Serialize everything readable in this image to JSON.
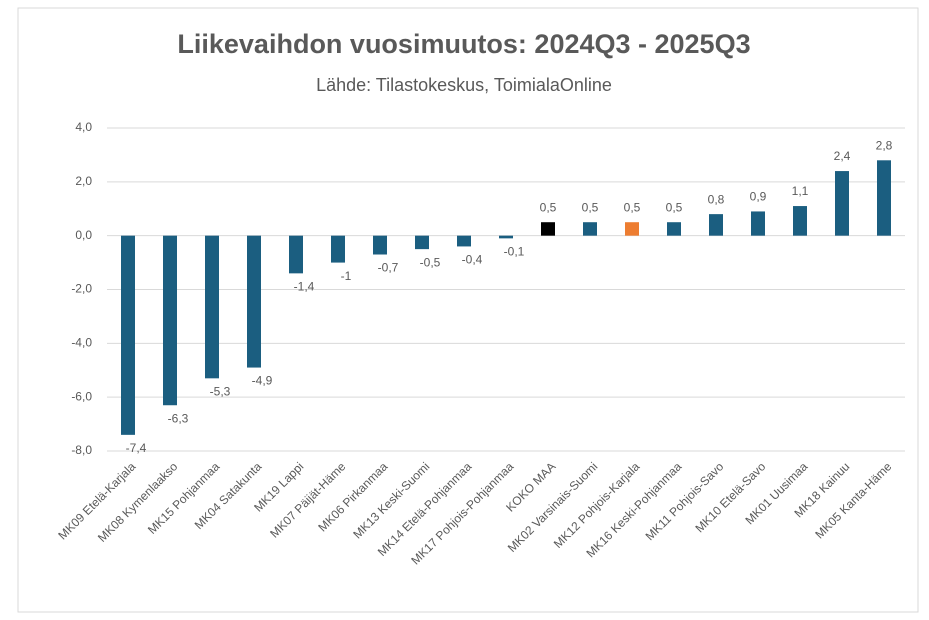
{
  "chart_data": {
    "type": "bar",
    "title": "Liikevaihdon vuosimuutos: 2024Q3 - 2025Q3",
    "subtitle": "Lähde: Tilastokeskus, ToimialaOnline",
    "categories": [
      "MK09 Etelä-Karjala",
      "MK08 Kymenlaakso",
      "MK15 Pohjanmaa",
      "MK04 Satakunta",
      "MK19 Lappi",
      "MK07 Päijät-Häme",
      "MK06 Pirkanmaa",
      "MK13 Keski-Suomi",
      "MK14 Etelä-Pohjanmaa",
      "MK17 Pohjois-Pohjanmaa",
      "KOKO MAA",
      "MK02 Varsinais-Suomi",
      "MK12 Pohjois-Karjala",
      "MK16 Keski-Pohjanmaa",
      "MK11 Pohjois-Savo",
      "MK10 Etelä-Savo",
      "MK01 Uusimaa",
      "MK18 Kainuu",
      "MK05 Kanta-Häme"
    ],
    "values": [
      -7.4,
      -6.3,
      -5.3,
      -4.9,
      -1.4,
      -1,
      -0.7,
      -0.5,
      -0.4,
      -0.1,
      0.5,
      0.5,
      0.5,
      0.5,
      0.8,
      0.9,
      1.1,
      2.4,
      2.8
    ],
    "value_labels": [
      "-7,4",
      "-6,3",
      "-5,3",
      "-4,9",
      "-1,4",
      "-1",
      "-0,7",
      "-0,5",
      "-0,4",
      "-0,1",
      "0,5",
      "0,5",
      "0,5",
      "0,5",
      "0,8",
      "0,9",
      "1,1",
      "2,4",
      "2,8"
    ],
    "colors": [
      "#1b5e80",
      "#1b5e80",
      "#1b5e80",
      "#1b5e80",
      "#1b5e80",
      "#1b5e80",
      "#1b5e80",
      "#1b5e80",
      "#1b5e80",
      "#1b5e80",
      "#000000",
      "#1b5e80",
      "#ed7d31",
      "#1b5e80",
      "#1b5e80",
      "#1b5e80",
      "#1b5e80",
      "#1b5e80",
      "#1b5e80"
    ],
    "ylim": [
      -8,
      4
    ],
    "yticks": [
      {
        "value": -8,
        "label": "-8,0"
      },
      {
        "value": -6,
        "label": "-6,0"
      },
      {
        "value": -4,
        "label": "-4,0"
      },
      {
        "value": -2,
        "label": "-2,0"
      },
      {
        "value": 0,
        "label": "0,0"
      },
      {
        "value": 2,
        "label": "2,0"
      },
      {
        "value": 4,
        "label": "4,0"
      }
    ],
    "grid": true
  }
}
